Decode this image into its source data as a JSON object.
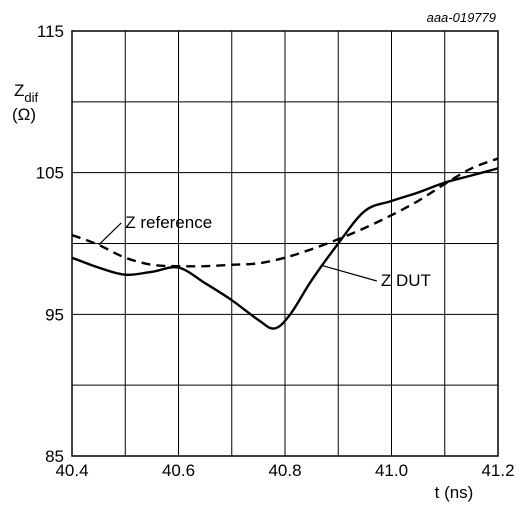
{
  "chart_data": {
    "type": "line",
    "figure_id": "aaa-019779",
    "title": "",
    "xlabel": "t (ns)",
    "ylabel": "Zdif (Ω)",
    "ylabel_main": "Z",
    "ylabel_sub": "dif",
    "ylabel_unit": "(Ω)",
    "xlim": [
      40.4,
      41.2
    ],
    "ylim": [
      85,
      115
    ],
    "x_ticks": [
      40.4,
      40.5,
      40.6,
      40.7,
      40.8,
      40.9,
      41.0,
      41.1,
      41.2
    ],
    "x_tick_labels": [
      "40.4",
      "",
      "40.6",
      "",
      "40.8",
      "",
      "41.0",
      "",
      "41.2"
    ],
    "y_ticks": [
      85,
      90,
      95,
      100,
      105,
      110,
      115
    ],
    "y_tick_labels": [
      "85",
      "",
      "95",
      "",
      "105",
      "",
      "115"
    ],
    "grid": true,
    "series": [
      {
        "name": "Z DUT",
        "style": "solid",
        "x": [
          40.4,
          40.45,
          40.5,
          40.55,
          40.6,
          40.65,
          40.7,
          40.75,
          40.78,
          40.81,
          40.85,
          40.9,
          40.95,
          41.0,
          41.05,
          41.1,
          41.15,
          41.2
        ],
        "y": [
          99.0,
          98.3,
          97.8,
          98.0,
          98.3,
          97.2,
          96.0,
          94.6,
          94.0,
          95.0,
          97.4,
          100.0,
          102.3,
          103.0,
          103.6,
          104.3,
          104.8,
          105.3
        ]
      },
      {
        "name": "Z reference",
        "style": "dashed",
        "x": [
          40.4,
          40.45,
          40.5,
          40.55,
          40.6,
          40.65,
          40.7,
          40.75,
          40.8,
          40.85,
          40.9,
          40.95,
          41.0,
          41.05,
          41.1,
          41.15,
          41.2
        ],
        "y": [
          100.6,
          99.9,
          99.0,
          98.5,
          98.4,
          98.4,
          98.5,
          98.6,
          99.0,
          99.6,
          100.3,
          101.1,
          102.0,
          103.0,
          104.2,
          105.3,
          106.0
        ]
      }
    ],
    "annotations": [
      {
        "text": "Z reference",
        "series": 1,
        "at_x": 40.45,
        "label_x": 40.5,
        "label_y": 101.1
      },
      {
        "text": "Z DUT",
        "series": 0,
        "at_x": 40.87,
        "label_x": 40.98,
        "label_y": 97.0
      }
    ]
  }
}
